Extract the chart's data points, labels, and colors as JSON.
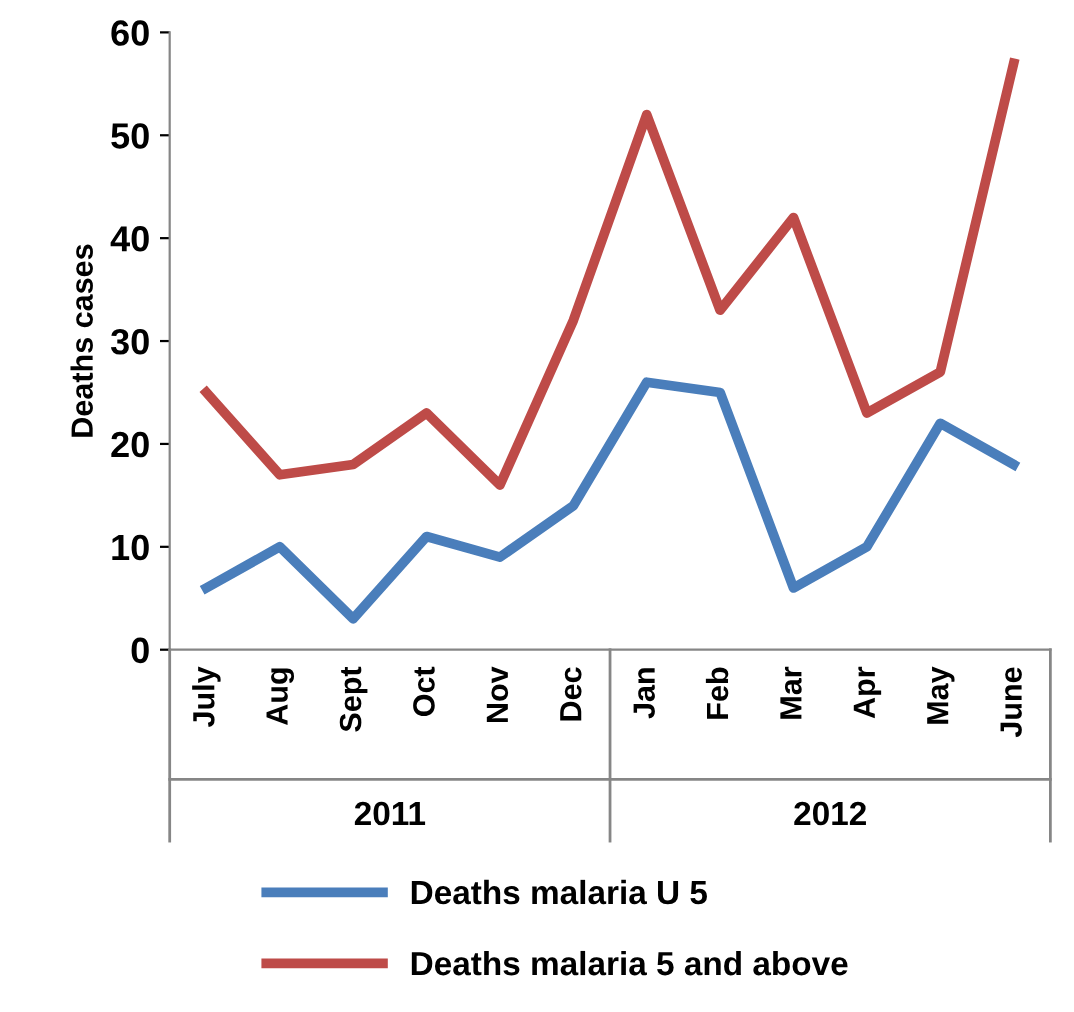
{
  "chart_data": {
    "type": "line",
    "ylabel": "Deaths cases",
    "categories": [
      "July",
      "Aug",
      "Sept",
      "Oct",
      "Nov",
      "Dec",
      "Jan",
      "Feb",
      "Mar",
      "Apr",
      "May",
      "June"
    ],
    "annotations": [
      "2011",
      "2012"
    ],
    "series": [
      {
        "name": "Deaths malaria U 5",
        "color": "#4a7ebb",
        "values": [
          6,
          10,
          3,
          11,
          9,
          14,
          26,
          25,
          6,
          10,
          22,
          18
        ]
      },
      {
        "name": "Deaths malaria 5 and above",
        "color": "#be4b48",
        "values": [
          25,
          17,
          18,
          23,
          16,
          32,
          52,
          33,
          42,
          23,
          27,
          57
        ]
      }
    ],
    "ylim": [
      0,
      60
    ],
    "yticks": [
      0,
      10,
      20,
      30,
      40,
      50,
      60
    ],
    "grid": false,
    "legend": "bottom",
    "marker": "none",
    "line_style": "solid"
  }
}
